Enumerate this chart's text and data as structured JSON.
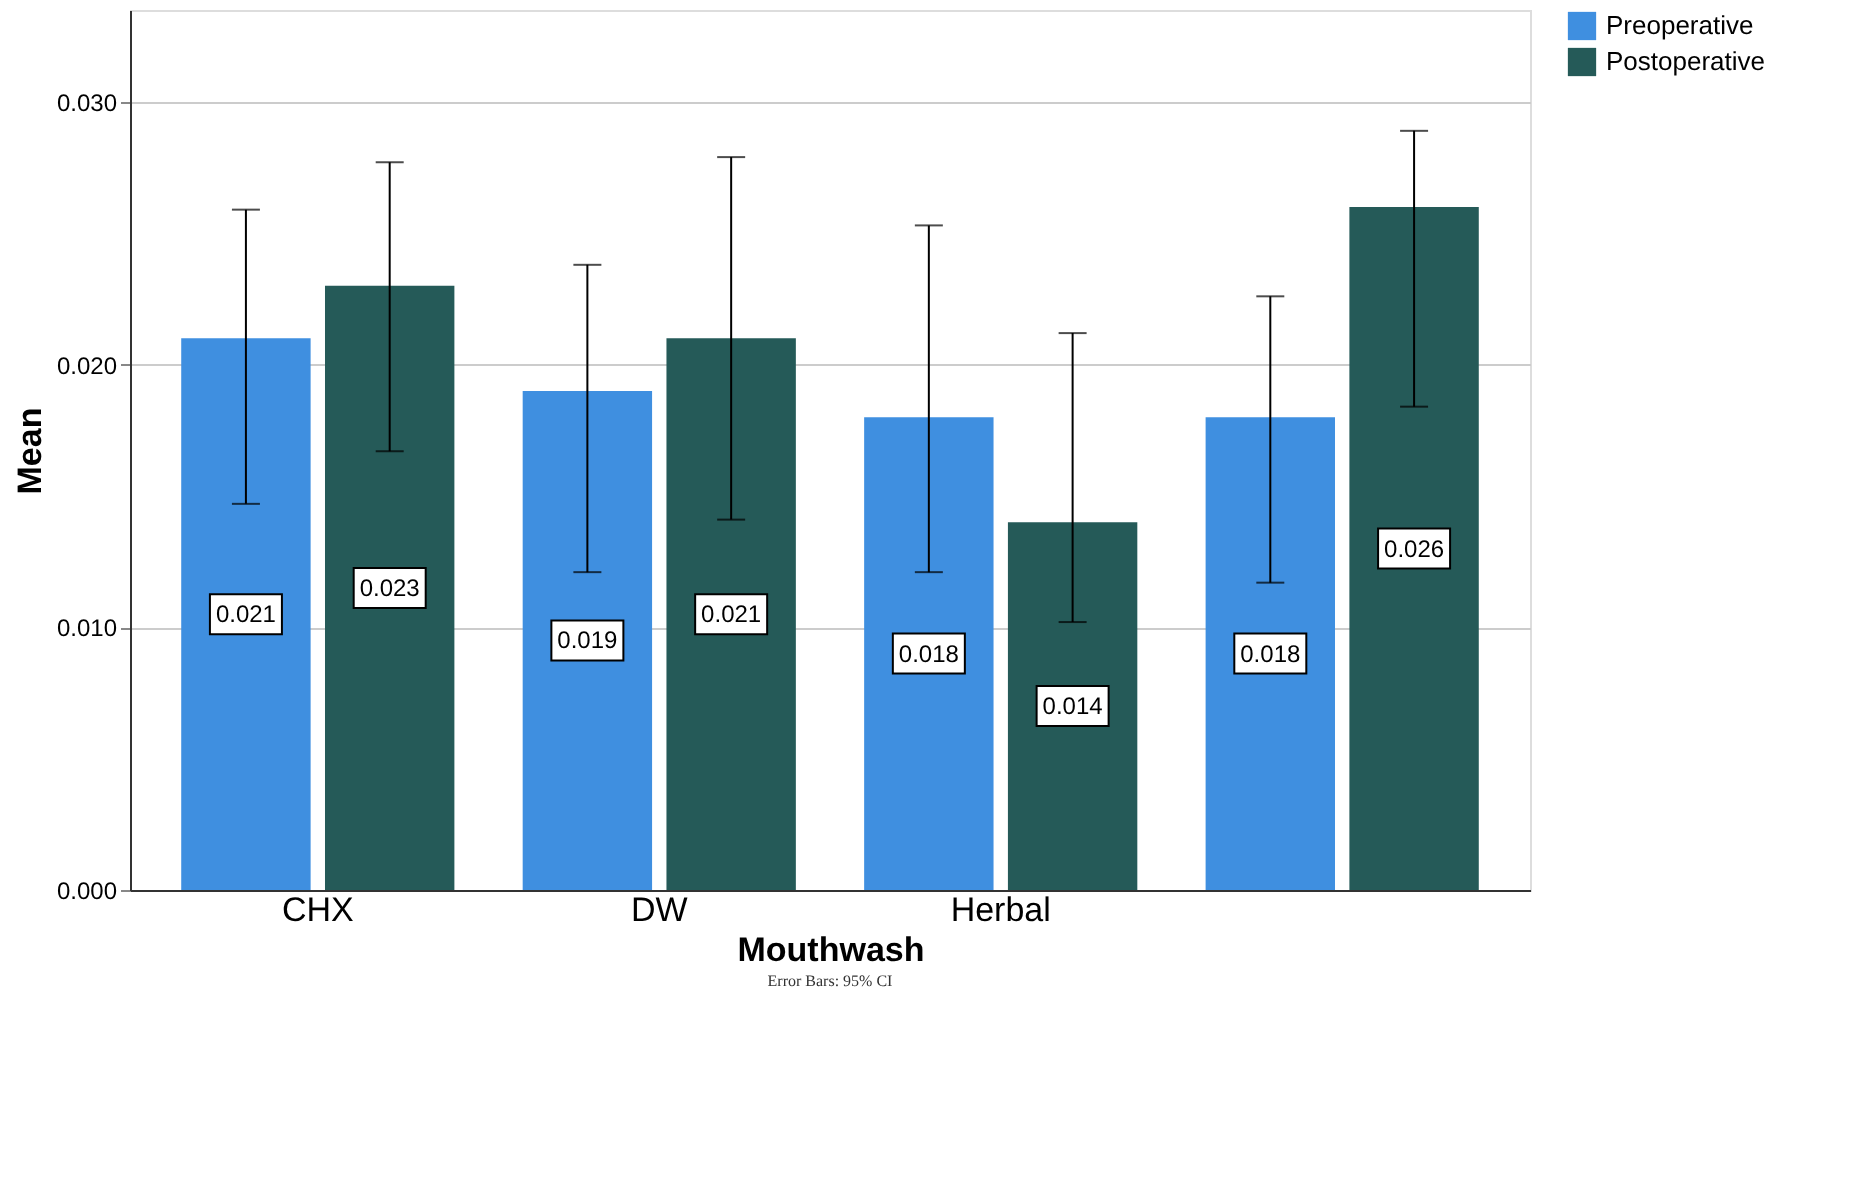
{
  "chart_data": {
    "type": "bar",
    "xlabel": "Mouthwash",
    "ylabel": "Mean",
    "categories": [
      "CHX",
      "DW",
      "Herbal",
      null
    ],
    "series": [
      {
        "name": "Preoperative",
        "color": "#3f8fe0",
        "values": [
          0.021,
          0.019,
          0.018,
          0.018
        ],
        "errors": [
          [
            0.0147,
            0.0259
          ],
          [
            0.0121,
            0.0238
          ],
          [
            0.0121,
            0.0253
          ],
          [
            0.0117,
            0.0226
          ]
        ]
      },
      {
        "name": "Postoperative",
        "color": "#255a58",
        "values": [
          0.023,
          0.021,
          0.014,
          0.026
        ],
        "errors": [
          [
            0.0167,
            0.0277
          ],
          [
            0.0141,
            0.0279
          ],
          [
            0.0102,
            0.0212
          ],
          [
            0.0184,
            0.0289
          ]
        ]
      }
    ],
    "ylim": [
      0,
      0.0335
    ],
    "yticks": [
      {
        "value": 0,
        "label": "0.000"
      },
      {
        "value": 0.01,
        "label": "0.010"
      },
      {
        "value": 0.02,
        "label": "0.020"
      },
      {
        "value": 0.03,
        "label": "0.030"
      }
    ],
    "grid": "y",
    "legend": "top right",
    "data_labels": true,
    "annotations": [
      "Error Bars: 95% CI"
    ]
  }
}
